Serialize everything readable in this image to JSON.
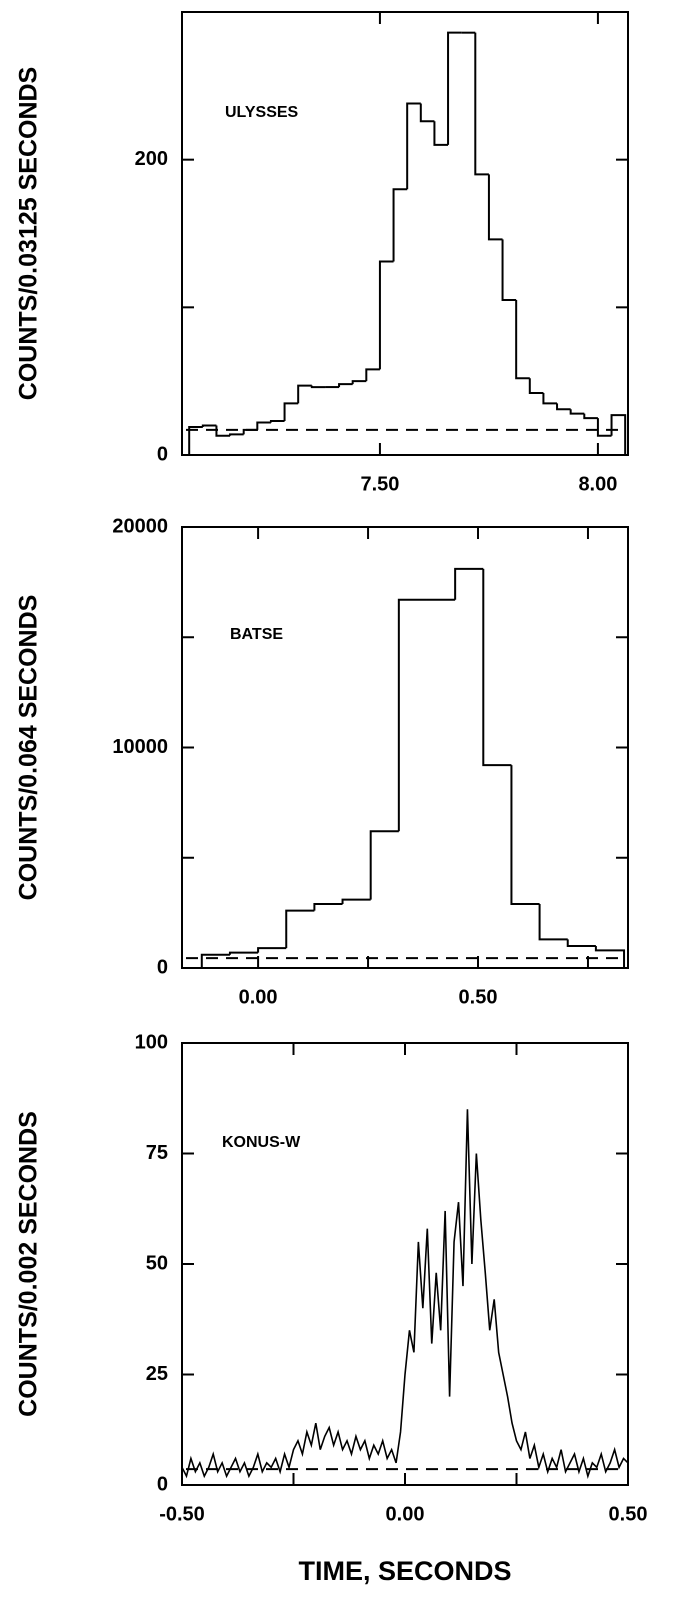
{
  "chart_data": [
    {
      "type": "histogram",
      "annotation": "ULYSSES",
      "ylabel": "COUNTS/0.03125 SECONDS",
      "bins": [
        7.0625,
        7.09375,
        7.125,
        7.15625,
        7.1875,
        7.21875,
        7.25,
        7.28125,
        7.3125,
        7.34375,
        7.375,
        7.40625,
        7.4375,
        7.46875,
        7.5,
        7.53125,
        7.5625,
        7.59375,
        7.625,
        7.65625,
        7.6875,
        7.71875,
        7.75,
        7.78125,
        7.8125,
        7.84375,
        7.875,
        7.90625,
        7.9375,
        7.96875,
        8.0,
        8.03125,
        8.0625
      ],
      "counts": [
        19,
        20,
        13,
        14,
        17,
        22,
        23,
        35,
        47,
        46,
        46,
        48,
        50,
        58,
        131,
        180,
        238,
        226,
        210,
        286,
        286,
        190,
        146,
        105,
        52,
        42,
        35,
        31,
        28,
        25,
        13,
        27
      ],
      "background": 17,
      "xlim": [
        7.046,
        8.069
      ],
      "xticks": [
        {
          "value": 7.5,
          "label": "7.50"
        },
        {
          "value": 8.0,
          "label": "8.00"
        }
      ],
      "ylim": [
        0,
        300
      ],
      "yticks": [
        0,
        200
      ],
      "minor_yticks": [
        100,
        300
      ]
    },
    {
      "type": "histogram",
      "annotation": "BATSE",
      "ylabel": "COUNTS/0.064 SECONDS",
      "bins": [
        -0.128,
        -0.064,
        0,
        0.064,
        0.128,
        0.192,
        0.256,
        0.32,
        0.384,
        0.448,
        0.512,
        0.576,
        0.64,
        0.704,
        0.768,
        0.832
      ],
      "counts": [
        600,
        700,
        900,
        2600,
        2900,
        3100,
        6200,
        16700,
        16700,
        18100,
        9200,
        2900,
        1300,
        1000,
        800
      ],
      "background": 450,
      "xlim": [
        -0.173,
        0.841
      ],
      "xticks": [
        {
          "value": 0,
          "label": "0.00"
        },
        {
          "value": 0.5,
          "label": "0.50"
        }
      ],
      "minor_xticks": [
        0.25,
        0.75
      ],
      "ylim": [
        0,
        20000
      ],
      "yticks": [
        0,
        10000,
        20000
      ],
      "minor_yticks": [
        5000,
        15000
      ]
    },
    {
      "type": "line",
      "annotation": "KONUS-W",
      "ylabel": "COUNTS/0.002 SECONDS",
      "xlabel": "TIME, SECONDS",
      "x": [
        -0.5,
        -0.49,
        -0.48,
        -0.47,
        -0.46,
        -0.45,
        -0.44,
        -0.43,
        -0.42,
        -0.41,
        -0.4,
        -0.39,
        -0.38,
        -0.37,
        -0.36,
        -0.35,
        -0.34,
        -0.33,
        -0.32,
        -0.31,
        -0.3,
        -0.29,
        -0.28,
        -0.27,
        -0.26,
        -0.25,
        -0.24,
        -0.23,
        -0.22,
        -0.21,
        -0.2,
        -0.19,
        -0.18,
        -0.17,
        -0.16,
        -0.15,
        -0.14,
        -0.13,
        -0.12,
        -0.11,
        -0.1,
        -0.09,
        -0.08,
        -0.07,
        -0.06,
        -0.05,
        -0.04,
        -0.03,
        -0.02,
        -0.01,
        0,
        0.01,
        0.02,
        0.03,
        0.04,
        0.05,
        0.06,
        0.07,
        0.08,
        0.09,
        0.1,
        0.11,
        0.12,
        0.13,
        0.14,
        0.15,
        0.16,
        0.17,
        0.18,
        0.19,
        0.2,
        0.21,
        0.22,
        0.23,
        0.24,
        0.25,
        0.26,
        0.27,
        0.28,
        0.29,
        0.3,
        0.31,
        0.32,
        0.33,
        0.34,
        0.35,
        0.36,
        0.37,
        0.38,
        0.39,
        0.4,
        0.41,
        0.42,
        0.43,
        0.44,
        0.45,
        0.46,
        0.47,
        0.48,
        0.49,
        0.5
      ],
      "values": [
        4,
        2,
        6,
        3,
        5,
        2,
        4,
        7,
        3,
        5,
        2,
        4,
        6,
        3,
        5,
        2,
        4,
        7,
        3,
        5,
        4,
        6,
        3,
        7,
        4,
        8,
        10,
        7,
        12,
        9,
        14,
        8,
        11,
        13,
        9,
        12,
        8,
        10,
        7,
        11,
        8,
        10,
        6,
        9,
        7,
        10,
        6,
        8,
        5,
        12,
        25,
        35,
        30,
        55,
        40,
        58,
        32,
        48,
        35,
        62,
        20,
        55,
        64,
        45,
        85,
        50,
        75,
        60,
        48,
        35,
        42,
        30,
        25,
        20,
        14,
        10,
        8,
        12,
        6,
        9,
        4,
        7,
        3,
        6,
        4,
        8,
        3,
        5,
        7,
        3,
        6,
        2,
        5,
        4,
        7,
        3,
        5,
        8,
        4,
        6,
        5
      ],
      "background": 3.6,
      "xlim": [
        -0.5,
        0.5
      ],
      "xticks": [
        {
          "value": -0.5,
          "label": "-0.50"
        },
        {
          "value": 0,
          "label": "0.00"
        },
        {
          "value": 0.5,
          "label": "0.50"
        }
      ],
      "minor_xticks": [
        -0.25,
        0.25
      ],
      "ylim": [
        0,
        100
      ],
      "yticks": [
        0,
        25,
        50,
        75,
        100
      ]
    }
  ]
}
